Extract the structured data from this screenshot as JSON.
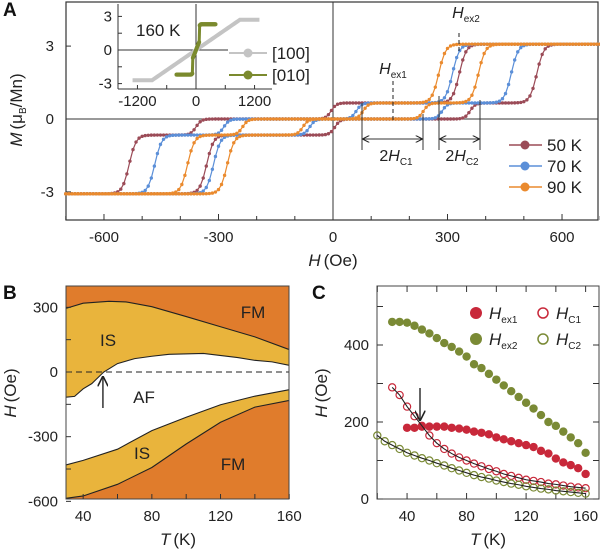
{
  "colors": {
    "t50": "#9b4b57",
    "t70": "#5b8fd8",
    "t90": "#ea8a2e",
    "inset100": "#c4c4c4",
    "inset010": "#7b8a2e",
    "fm": "#e07c2c",
    "is": "#e9b43c",
    "af": "#ffffff",
    "hex1": "#c8283a",
    "hex2": "#7a8a35"
  },
  "chart_data": [
    {
      "panel": "A",
      "type": "line",
      "xlabel": {
        "main": "H",
        "unit": "(Oe)"
      },
      "ylabel": {
        "main": "M",
        "unit_pre": "(μ",
        "unit_sub": "B",
        "unit_post": "/Mn)"
      },
      "xlim": [
        -700,
        700
      ],
      "ylim": [
        -4.15,
        4.8
      ],
      "xticks": [
        "-600",
        "-300",
        "0",
        "300",
        "600"
      ],
      "yticks": [
        "3",
        "0",
        "-3"
      ],
      "legend_position": "bottom-right",
      "plateau_levels": [
        3.08,
        0.66,
        0,
        -0.66,
        -3.08
      ],
      "series": [
        {
          "name": "50 K",
          "color_key": "t50",
          "ascending_switch_fields": [
            -331,
            5,
            359,
            534
          ]
        },
        {
          "name": "70 K",
          "color_key": "t70",
          "ascending_switch_fields": [
            -313,
            -61,
            286,
            467
          ]
        },
        {
          "name": "90 K",
          "color_key": "t90",
          "ascending_switch_fields": [
            -277,
            -79,
            237,
            381
          ]
        }
      ],
      "annotations": {
        "hex1": {
          "main": "H",
          "sub": "ex1",
          "value": 158
        },
        "hex2": {
          "main": "H",
          "sub": "ex2",
          "value": 330
        },
        "hc1": {
          "pre": "2",
          "main": "H",
          "sub": "C1",
          "range": [
            76,
            237
          ]
        },
        "hc2": {
          "pre": "2",
          "main": "H",
          "sub": "C2",
          "range": [
            277,
            383
          ]
        }
      },
      "inset": {
        "label": "160 K",
        "xlim": [
          -1500,
          1600
        ],
        "ylim": [
          -3.5,
          3.8
        ],
        "xticks": [
          "-1200",
          "0",
          "1200"
        ],
        "yticks": [
          "3",
          "0",
          "-3"
        ],
        "series": [
          {
            "name": "[100]",
            "color_key": "inset100",
            "points": [
              [
                -1300,
                -2.7
              ],
              [
                -900,
                -2.7
              ],
              [
                900,
                2.7
              ],
              [
                1300,
                2.7
              ]
            ]
          },
          {
            "name": "[010]",
            "color_key": "inset010",
            "points": [
              [
                -400,
                -2.2
              ],
              [
                -100,
                -2.2
              ],
              [
                -75,
                -2.1
              ],
              [
                -65,
                -0.7
              ],
              [
                -30,
                -0.35
              ],
              [
                0,
                0
              ],
              [
                30,
                0.35
              ],
              [
                65,
                0.7
              ],
              [
                75,
                2.2
              ],
              [
                100,
                2.3
              ],
              [
                400,
                2.3
              ]
            ]
          }
        ]
      }
    },
    {
      "panel": "B",
      "type": "area",
      "xlabel": {
        "main": "T",
        "unit": "(K)"
      },
      "ylabel": {
        "main": "H",
        "unit": "(Oe)"
      },
      "xlim": [
        30,
        160
      ],
      "ylim": [
        -590,
        400
      ],
      "xticks": [
        "40",
        "80",
        "120",
        "160"
      ],
      "yticks": [
        "300",
        "0",
        "-300",
        "-600"
      ],
      "boundaries": {
        "upper_fm_is": [
          [
            30,
            295
          ],
          [
            40,
            319
          ],
          [
            55,
            328
          ],
          [
            65,
            325
          ],
          [
            80,
            303
          ],
          [
            100,
            257
          ],
          [
            120,
            210
          ],
          [
            140,
            163
          ],
          [
            160,
            104
          ]
        ],
        "upper_is_af": [
          [
            30,
            -117
          ],
          [
            35,
            -113
          ],
          [
            40,
            -78
          ],
          [
            45,
            -54
          ],
          [
            52,
            0
          ],
          [
            60,
            39
          ],
          [
            70,
            62
          ],
          [
            80,
            73
          ],
          [
            90,
            82
          ],
          [
            110,
            86
          ],
          [
            130,
            67
          ],
          [
            140,
            54
          ],
          [
            150,
            47
          ],
          [
            160,
            31
          ]
        ],
        "lower_af_is": [
          [
            30,
            -431
          ],
          [
            40,
            -410
          ],
          [
            60,
            -358
          ],
          [
            80,
            -272
          ],
          [
            100,
            -210
          ],
          [
            120,
            -152
          ],
          [
            140,
            -112
          ],
          [
            160,
            -82
          ]
        ],
        "lower_is_fm": [
          [
            30,
            -586
          ],
          [
            40,
            -575
          ],
          [
            60,
            -521
          ],
          [
            80,
            -443
          ],
          [
            100,
            -334
          ],
          [
            120,
            -233
          ],
          [
            140,
            -163
          ],
          [
            160,
            -132
          ]
        ]
      },
      "regions": {
        "fm_top": "FM",
        "is_top": "IS",
        "af": "AF",
        "is_bottom": "IS",
        "fm_bottom": "FM"
      },
      "arrow_T": 51.5
    },
    {
      "panel": "C",
      "type": "scatter",
      "xlabel": {
        "main": "T",
        "unit": "(K)"
      },
      "ylabel": {
        "main": "H",
        "unit": "(Oe)"
      },
      "xlim": [
        20,
        169
      ],
      "ylim": [
        0,
        553
      ],
      "xticks": [
        "40",
        "80",
        "120",
        "160"
      ],
      "yticks": [
        "400",
        "200",
        "0"
      ],
      "legend_position": "top-right",
      "arrow_T": 48.7,
      "series": [
        {
          "name": {
            "main": "H",
            "sub": "ex1"
          },
          "color_key": "hex1",
          "filled": true,
          "T": [
            40,
            45,
            50,
            55,
            60,
            65,
            70,
            75,
            80,
            85,
            90,
            95,
            100,
            105,
            110,
            115,
            120,
            125,
            130,
            135,
            140,
            145,
            150,
            155,
            160
          ],
          "H": [
            185,
            185,
            188,
            188,
            188,
            188,
            185,
            183,
            180,
            175,
            172,
            168,
            160,
            155,
            150,
            145,
            140,
            135,
            125,
            118,
            105,
            95,
            88,
            80,
            65
          ]
        },
        {
          "name": {
            "main": "H",
            "sub": "ex2"
          },
          "color_key": "hex2",
          "filled": true,
          "T": [
            30,
            35,
            40,
            45,
            50,
            55,
            60,
            65,
            70,
            75,
            80,
            85,
            90,
            95,
            100,
            105,
            110,
            115,
            120,
            125,
            130,
            135,
            140,
            145,
            150,
            155,
            160
          ],
          "H": [
            460,
            460,
            458,
            450,
            440,
            430,
            418,
            405,
            395,
            383,
            370,
            350,
            340,
            325,
            310,
            295,
            280,
            265,
            250,
            235,
            218,
            200,
            190,
            175,
            160,
            145,
            120
          ]
        },
        {
          "name": {
            "main": "H",
            "sub": "C1"
          },
          "color_key": "hex1",
          "filled": false,
          "fit": true,
          "T": [
            30,
            35,
            40,
            45,
            50,
            55,
            60,
            65,
            70,
            75,
            80,
            85,
            90,
            95,
            100,
            105,
            110,
            115,
            120,
            125,
            130,
            135,
            140,
            145,
            150,
            155,
            160
          ],
          "H": [
            290,
            270,
            240,
            215,
            190,
            165,
            145,
            130,
            118,
            108,
            100,
            92,
            85,
            78,
            72,
            65,
            60,
            55,
            50,
            47,
            44,
            40,
            38,
            35,
            32,
            30,
            28
          ]
        },
        {
          "name": {
            "main": "H",
            "sub": "C2"
          },
          "color_key": "hex2",
          "filled": false,
          "fit": true,
          "T": [
            20,
            25,
            30,
            35,
            40,
            45,
            50,
            55,
            60,
            65,
            70,
            75,
            80,
            85,
            90,
            95,
            100,
            105,
            110,
            115,
            120,
            125,
            130,
            135,
            140,
            145,
            150,
            155,
            160
          ],
          "H": [
            165,
            150,
            140,
            130,
            120,
            113,
            106,
            100,
            93,
            87,
            80,
            74,
            68,
            62,
            57,
            53,
            48,
            44,
            40,
            37,
            33,
            30,
            27,
            25,
            22,
            20,
            18,
            16,
            14
          ]
        }
      ]
    }
  ]
}
